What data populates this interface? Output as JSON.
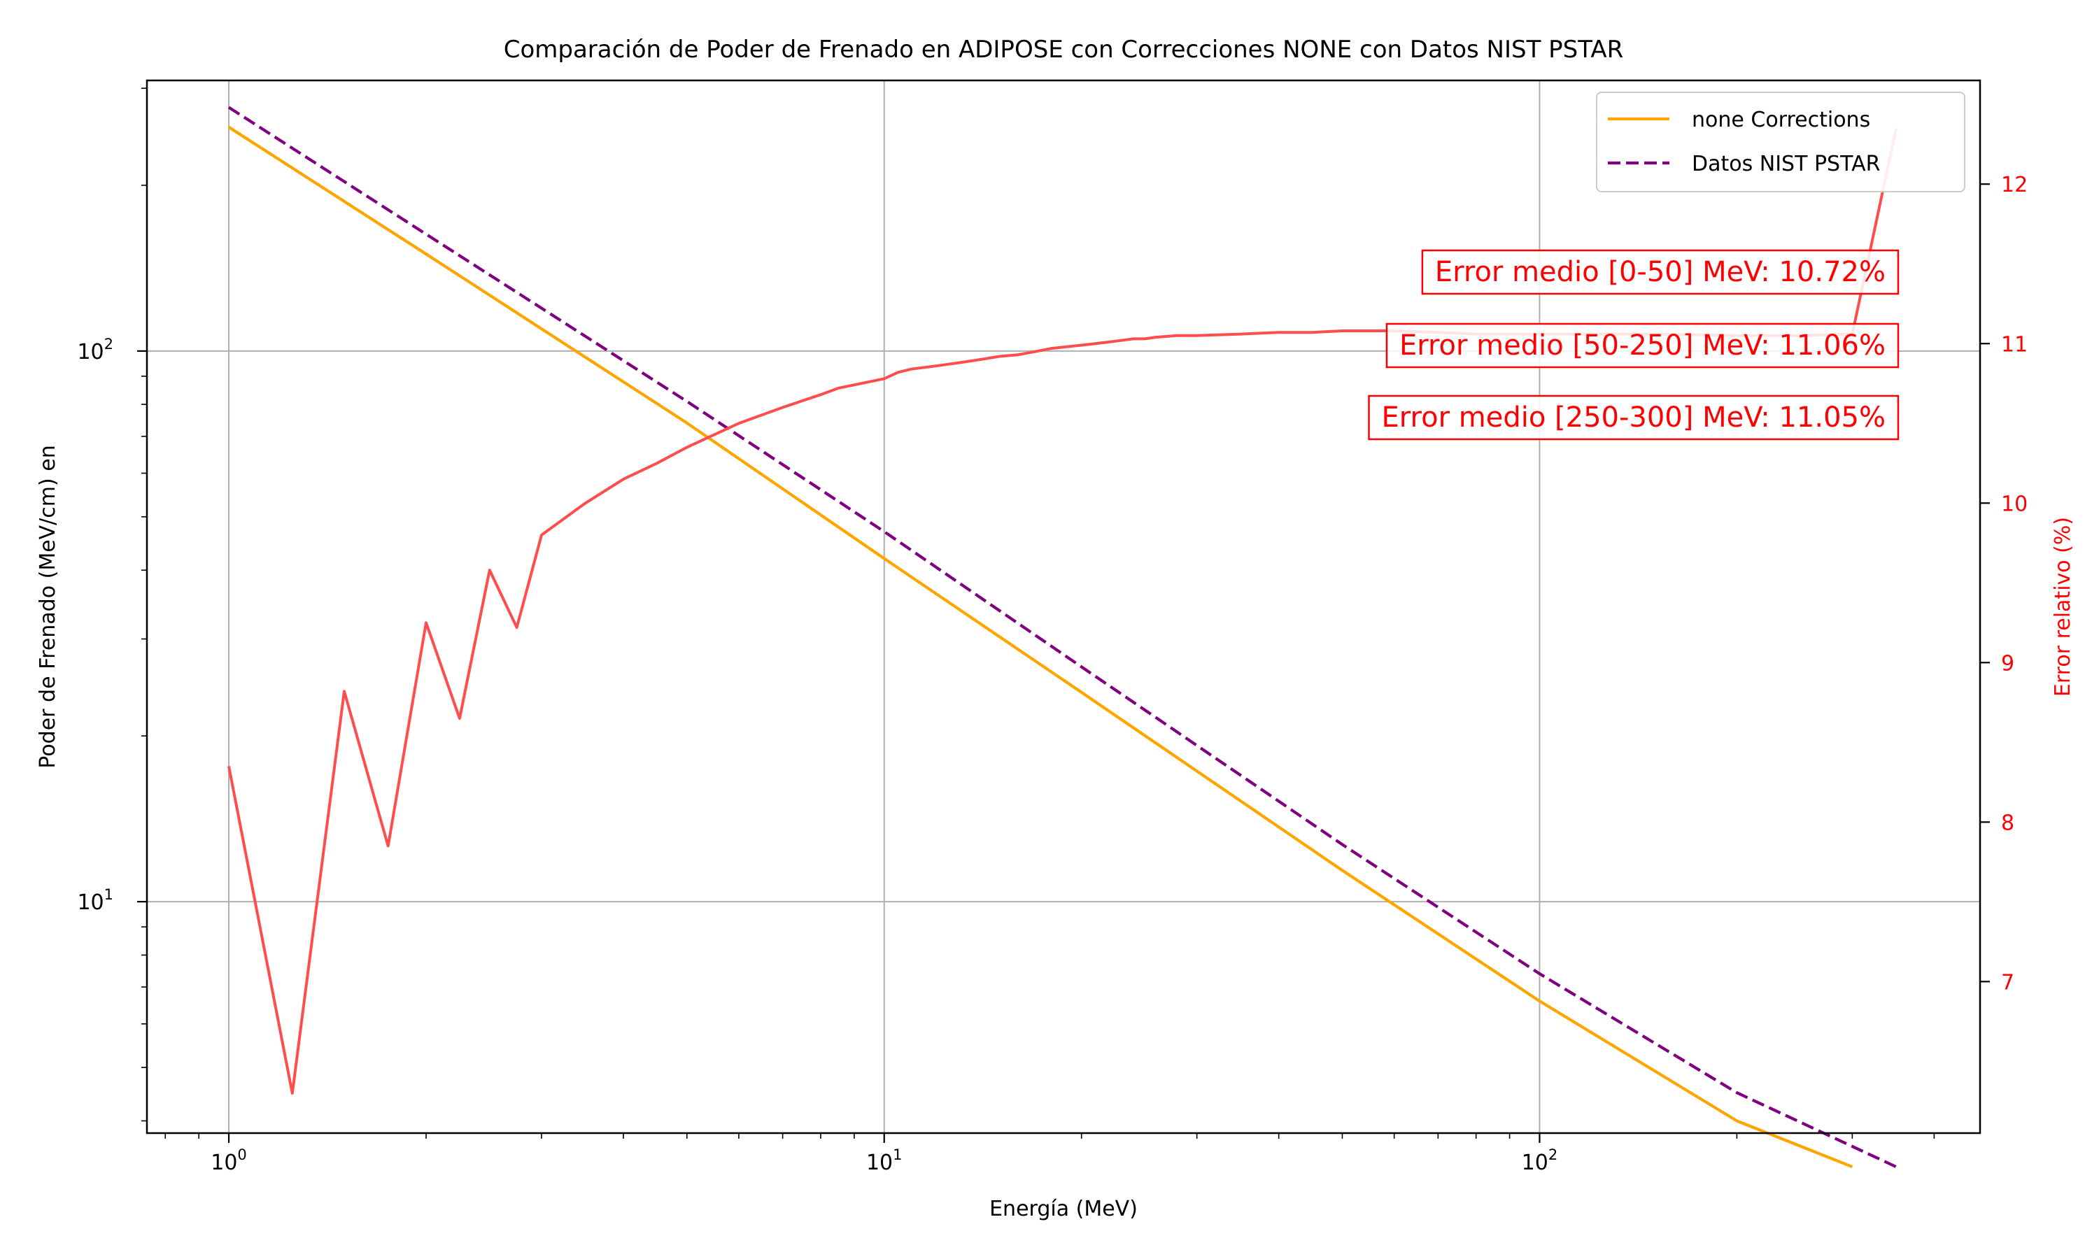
{
  "chart_data": {
    "type": "line",
    "title": "Comparación de Poder de Frenado en ADIPOSE con Correcciones NONE con Datos NIST PSTAR",
    "xlabel": "Energía (MeV)",
    "ylabel": "Poder de Frenado (MeV/cm) en",
    "y2label": "Error relativo (%)",
    "xscale": "log",
    "yscale": "log",
    "xlim": [
      0.75,
      470
    ],
    "ylim": [
      3.8,
      310
    ],
    "y2lim": [
      6.05,
      12.65
    ],
    "grid": true,
    "legend_position": "top-right",
    "colors": {
      "corrections": "#ffa500",
      "nist": "#800080",
      "error": "#ff4d4d",
      "axis": "#000000",
      "axis_right": "#ff0000",
      "grid": "#b0b0b0"
    },
    "x_ticks": [
      {
        "value": 1,
        "base": "10",
        "exp": "0"
      },
      {
        "value": 10,
        "base": "10",
        "exp": "1"
      },
      {
        "value": 100,
        "base": "10",
        "exp": "2"
      }
    ],
    "y_ticks": [
      {
        "value": 10,
        "base": "10",
        "exp": "1"
      },
      {
        "value": 100,
        "base": "10",
        "exp": "2"
      }
    ],
    "y2_ticks": [
      "7",
      "8",
      "9",
      "10",
      "11",
      "12"
    ],
    "series": [
      {
        "name": "none Corrections",
        "axis": "left",
        "style": "solid",
        "x": [
          1,
          2,
          5,
          10,
          20,
          50,
          100,
          200,
          300
        ],
        "y": [
          255,
          150,
          74,
          42,
          24,
          11.4,
          6.6,
          4.0,
          3.3
        ]
      },
      {
        "name": "Datos NIST PSTAR",
        "axis": "left",
        "style": "dashed",
        "x": [
          1,
          2,
          5,
          10,
          20,
          50,
          100,
          200,
          350
        ],
        "y": [
          277,
          163,
          81,
          47,
          26.7,
          12.7,
          7.4,
          4.5,
          3.3
        ]
      },
      {
        "name": "Error relativo",
        "axis": "right",
        "style": "solid",
        "x": [
          1,
          1.25,
          1.5,
          1.75,
          2,
          2.25,
          2.5,
          2.75,
          3,
          3.5,
          4,
          4.5,
          5,
          6,
          7,
          8,
          8.5,
          10,
          10.5,
          11,
          12,
          13,
          14,
          15,
          16,
          17,
          18,
          19,
          20,
          21,
          22,
          23,
          24,
          25,
          26,
          28,
          30,
          35,
          40,
          45,
          50,
          60,
          70,
          80,
          100,
          150,
          200,
          250,
          300,
          350
        ],
        "y": [
          8.35,
          6.3,
          8.82,
          7.85,
          9.25,
          8.65,
          9.58,
          9.22,
          9.8,
          10.0,
          10.15,
          10.25,
          10.35,
          10.5,
          10.6,
          10.68,
          10.72,
          10.78,
          10.82,
          10.84,
          10.86,
          10.88,
          10.9,
          10.92,
          10.93,
          10.95,
          10.97,
          10.98,
          10.99,
          11.0,
          11.01,
          11.02,
          11.03,
          11.03,
          11.04,
          11.05,
          11.05,
          11.06,
          11.07,
          11.07,
          11.08,
          11.08,
          11.07,
          11.06,
          11.06,
          11.06,
          11.05,
          11.05,
          11.06,
          12.35
        ]
      }
    ],
    "annotations": [
      "Error medio [0-50] MeV: 10.72%",
      "Error medio [50-250] MeV: 11.06%",
      "Error medio [250-300] MeV: 11.05%"
    ]
  }
}
